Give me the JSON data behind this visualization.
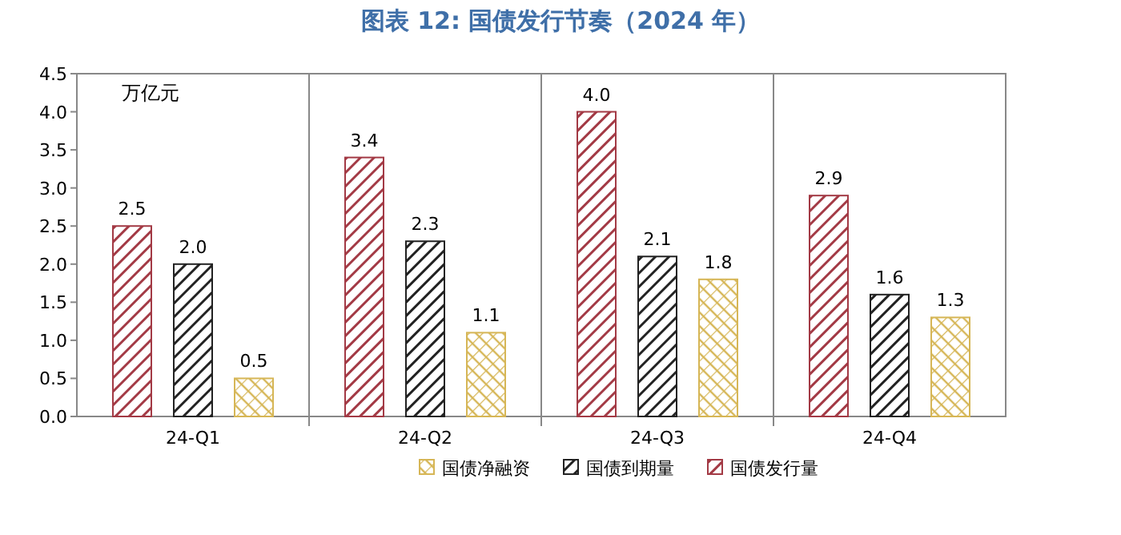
{
  "chart_data": {
    "type": "bar",
    "title": "图表 12: 国债发行节奏（2024 年）",
    "ylabel": "万亿元",
    "categories": [
      "24-Q1",
      "24-Q2",
      "24-Q3",
      "24-Q4"
    ],
    "series": [
      {
        "name": "国债发行量",
        "color": "#a33a45",
        "values": [
          2.5,
          3.4,
          4.0,
          2.9
        ],
        "value_labels": [
          "2.5",
          "3.4",
          "4.0",
          "2.9"
        ]
      },
      {
        "name": "国债到期量",
        "color": "#222222",
        "values": [
          2.0,
          2.3,
          2.1,
          1.6
        ],
        "value_labels": [
          "2.0",
          "2.3",
          "2.1",
          "1.6"
        ]
      },
      {
        "name": "国债净融资",
        "color": "#d6b656",
        "values": [
          0.5,
          1.1,
          1.8,
          1.3
        ],
        "value_labels": [
          "0.5",
          "1.1",
          "1.8",
          "1.3"
        ]
      }
    ],
    "ylim": [
      0,
      4.5
    ],
    "yticks": [
      {
        "value": 0,
        "label": "0.0"
      },
      0.5,
      {
        "value": 1,
        "label": "1.0"
      },
      1.5,
      {
        "value": 2,
        "label": "2.0"
      },
      2.5,
      {
        "value": 3,
        "label": "3.0"
      },
      3.5,
      {
        "value": 4,
        "label": "4.0"
      },
      4.5
    ],
    "grid": false,
    "legend": "bottom"
  }
}
